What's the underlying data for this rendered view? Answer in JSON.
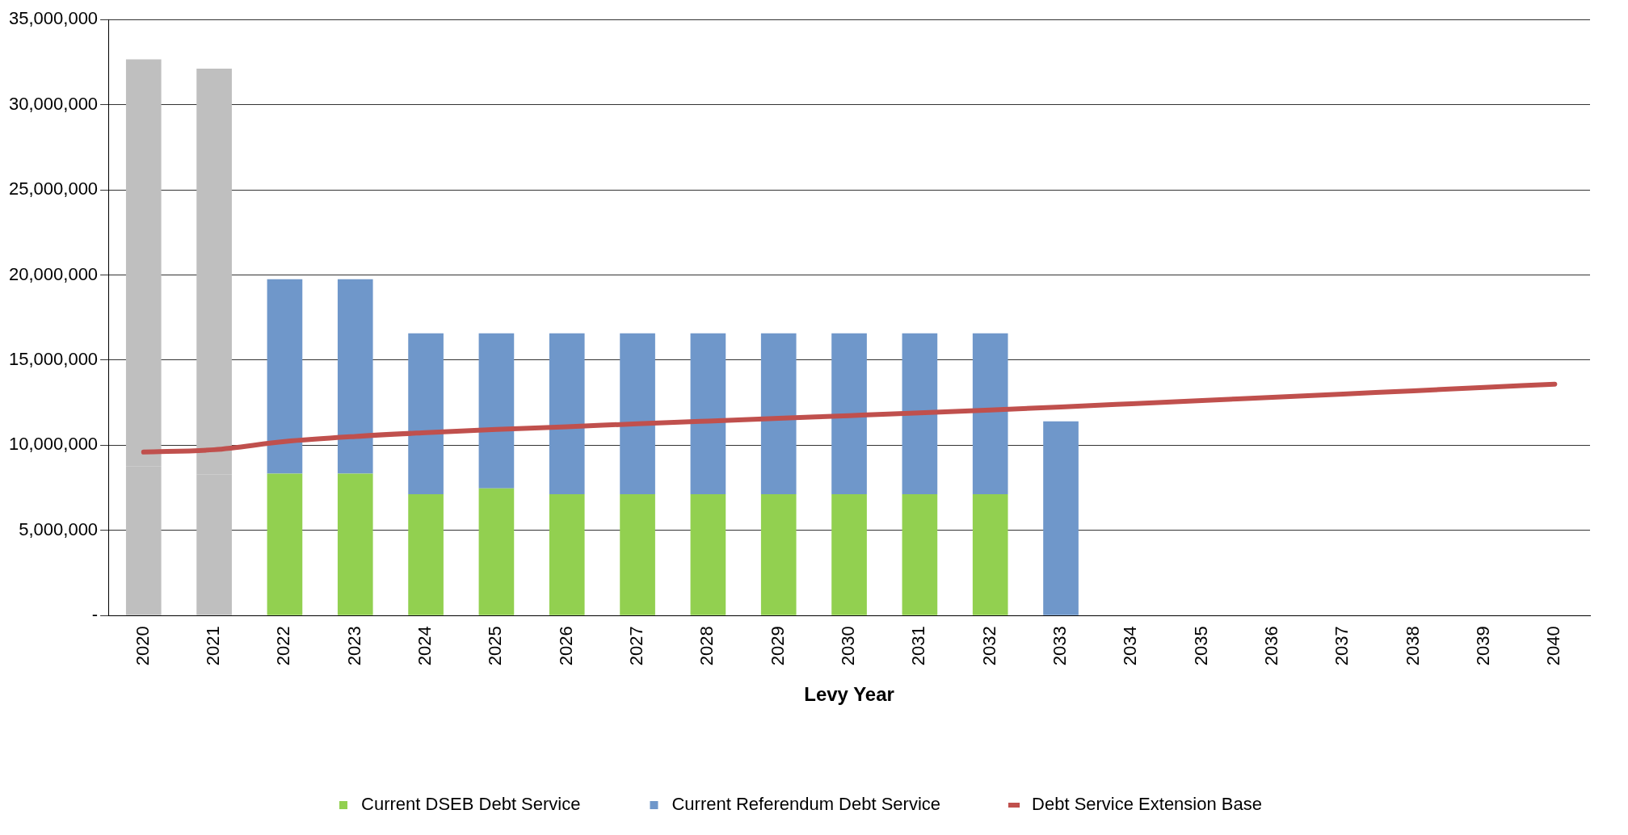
{
  "chart_data": {
    "type": "bar",
    "stacked": true,
    "xlabel": "Levy Year",
    "categories": [
      "2020",
      "2021",
      "2022",
      "2023",
      "2024",
      "2025",
      "2026",
      "2027",
      "2028",
      "2029",
      "2030",
      "2031",
      "2032",
      "2033",
      "2034",
      "2035",
      "2036",
      "2037",
      "2038",
      "2039",
      "2040"
    ],
    "series": [
      {
        "color": "#bfbfbf",
        "values": [
          8750000,
          8280000,
          null,
          null,
          null,
          null,
          null,
          null,
          null,
          null,
          null,
          null,
          null,
          null,
          null,
          null,
          null,
          null,
          null,
          null,
          null
        ]
      },
      {
        "color": "#bfbfbf",
        "values": [
          23910000,
          23840000,
          null,
          null,
          null,
          null,
          null,
          null,
          null,
          null,
          null,
          null,
          null,
          null,
          null,
          null,
          null,
          null,
          null,
          null,
          null
        ]
      },
      {
        "name": "Current DSEB Debt Service",
        "color": "#92d050",
        "values": [
          null,
          null,
          8330000,
          8330000,
          7120000,
          7470000,
          7120000,
          7120000,
          7120000,
          7120000,
          7120000,
          7120000,
          7120000,
          null,
          null,
          null,
          null,
          null,
          null,
          null,
          null
        ]
      },
      {
        "name": "Current Referendum Debt Service",
        "color": "#6f97ca",
        "values": [
          null,
          null,
          11420000,
          11420000,
          9460000,
          9110000,
          9460000,
          9460000,
          9460000,
          9460000,
          9460000,
          9460000,
          9460000,
          11410000,
          null,
          null,
          null,
          null,
          null,
          null,
          null
        ]
      },
      {
        "name": "Debt Service Extension Base",
        "type": "line",
        "color": "#c0504d",
        "values": [
          9600000,
          9740000,
          10220000,
          10520000,
          10740000,
          10930000,
          11090000,
          11260000,
          11420000,
          11580000,
          11740000,
          11900000,
          12070000,
          12250000,
          12440000,
          12630000,
          12820000,
          13010000,
          13200000,
          13400000,
          13590000
        ]
      }
    ],
    "ylim": [
      0,
      35000000
    ],
    "yticks": [
      {
        "value": 0,
        "label": "-"
      },
      {
        "value": 5000000,
        "label": "5,000,000"
      },
      {
        "value": 10000000,
        "label": "10,000,000"
      },
      {
        "value": 15000000,
        "label": "15,000,000"
      },
      {
        "value": 20000000,
        "label": "20,000,000"
      },
      {
        "value": 25000000,
        "label": "25,000,000"
      },
      {
        "value": 30000000,
        "label": "30,000,000"
      },
      {
        "value": 35000000,
        "label": "35,000,000"
      }
    ],
    "grid": "y",
    "legend": "bottom",
    "marker": "none",
    "line_style": "solid"
  }
}
